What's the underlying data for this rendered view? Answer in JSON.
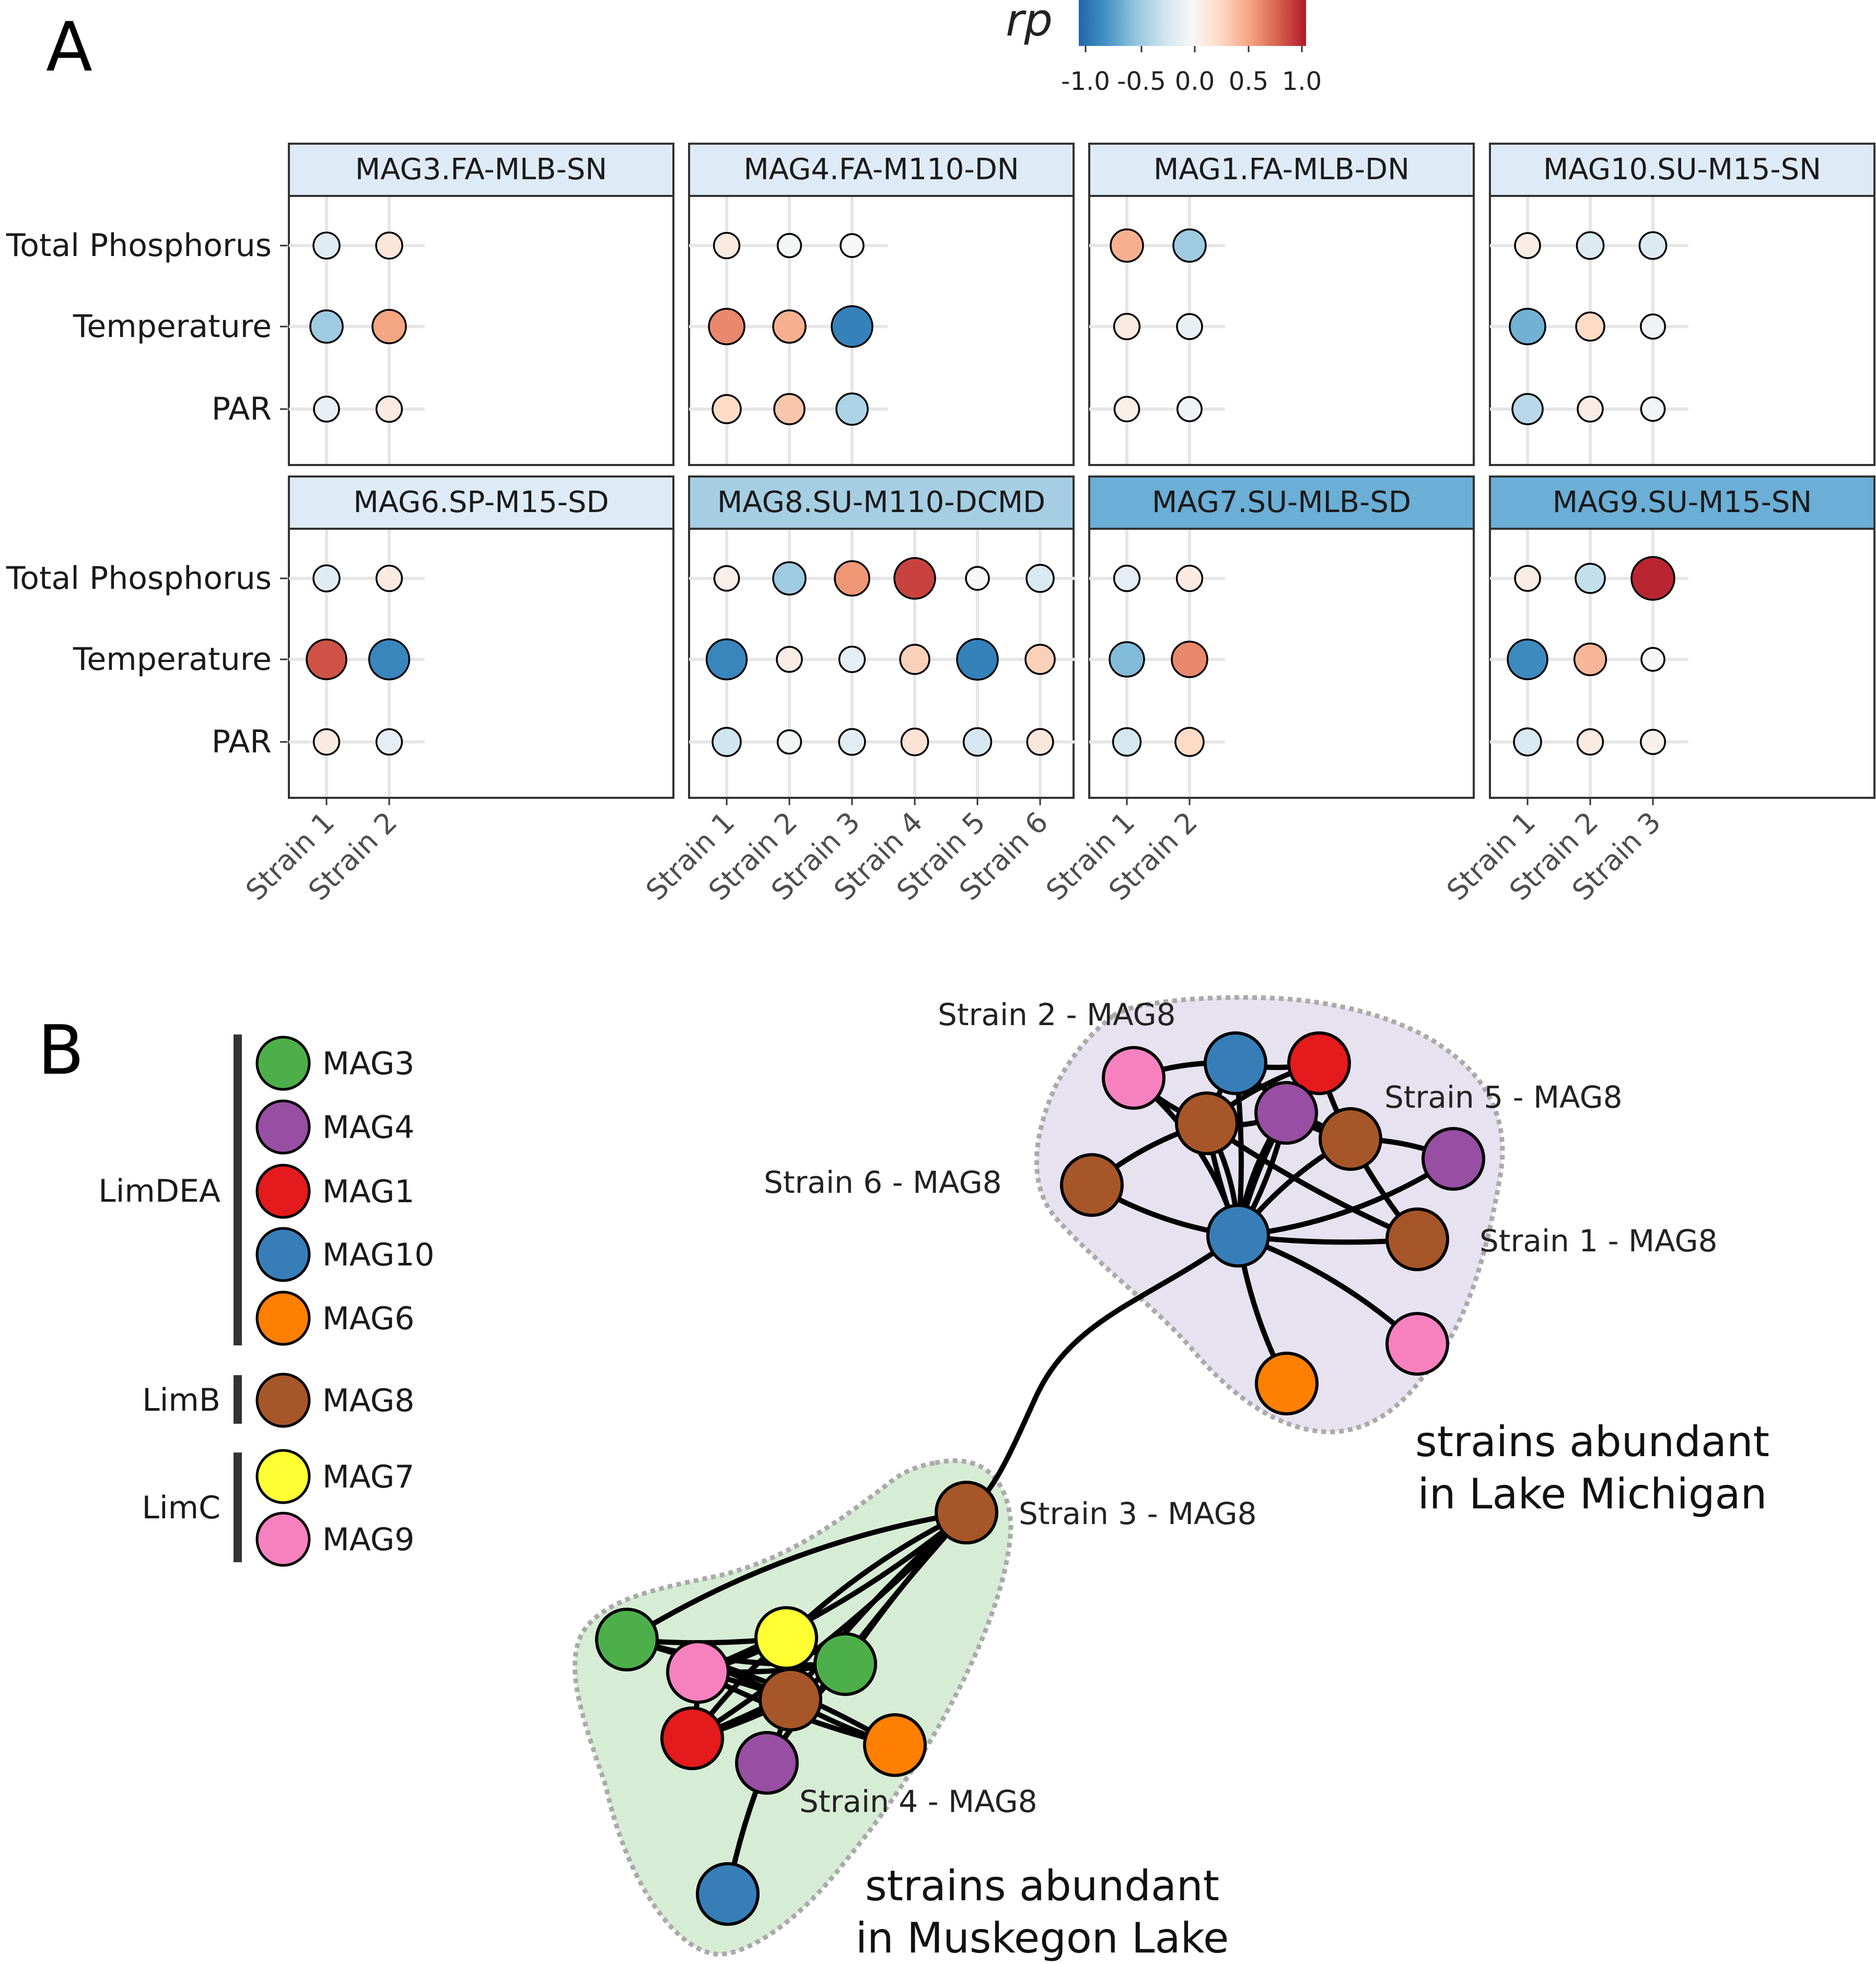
{
  "panel_a": {
    "letter": "A",
    "legend": {
      "title": "rp",
      "ticks": [
        "-1.0",
        "-0.5",
        "0.0",
        "0.5",
        "1.0"
      ],
      "colors": [
        "#2166ac",
        "#4393c3",
        "#92c5de",
        "#d1e5f0",
        "#f7f7f7",
        "#fddbc7",
        "#f4a582",
        "#d6604d",
        "#b2182b"
      ]
    },
    "rows": [
      "Total Phosphorus",
      "Temperature",
      "PAR"
    ]
  },
  "chart_data": [
    {
      "type": "scatter",
      "title": "MAG3.FA-MLB-SN",
      "header_color": "#deebf7",
      "x": [
        "Strain 1",
        "Strain 2"
      ],
      "y": [
        "Total Phosphorus",
        "Temperature",
        "PAR"
      ],
      "values": [
        [
          -0.15,
          0.15
        ],
        [
          -0.45,
          0.5
        ],
        [
          -0.1,
          0.12
        ]
      ]
    },
    {
      "type": "scatter",
      "title": "MAG4.FA-M110-DN",
      "header_color": "#deebf7",
      "x": [
        "Strain 1",
        "Strain 2",
        "Strain 3"
      ],
      "y": [
        "Total Phosphorus",
        "Temperature",
        "PAR"
      ],
      "values": [
        [
          0.12,
          -0.02,
          0.0
        ],
        [
          0.6,
          0.45,
          -0.85
        ],
        [
          0.25,
          0.35,
          -0.4
        ]
      ]
    },
    {
      "type": "scatter",
      "title": "MAG1.FA-MLB-DN",
      "header_color": "#deebf7",
      "x": [
        "Strain 1",
        "Strain 2"
      ],
      "y": [
        "Total Phosphorus",
        "Temperature",
        "PAR"
      ],
      "values": [
        [
          0.45,
          -0.45
        ],
        [
          0.12,
          -0.1
        ],
        [
          0.08,
          -0.06
        ]
      ]
    },
    {
      "type": "scatter",
      "title": "MAG10.SU-M15-SN",
      "header_color": "#deebf7",
      "x": [
        "Strain 1",
        "Strain 2",
        "Strain 3"
      ],
      "y": [
        "Total Phosphorus",
        "Temperature",
        "PAR"
      ],
      "values": [
        [
          0.1,
          -0.18,
          -0.18
        ],
        [
          -0.6,
          0.25,
          -0.06
        ],
        [
          -0.35,
          0.1,
          -0.03
        ]
      ]
    },
    {
      "type": "scatter",
      "title": "MAG6.SP-M15-SD",
      "header_color": "#deebf7",
      "x": [
        "Strain 1",
        "Strain 2"
      ],
      "y": [
        "Total Phosphorus",
        "Temperature",
        "PAR"
      ],
      "values": [
        [
          -0.15,
          0.12
        ],
        [
          0.8,
          -0.82
        ],
        [
          0.12,
          -0.12
        ]
      ]
    },
    {
      "type": "scatter",
      "title": "MAG8.SU-M110-DCMD",
      "header_color": "#a6cee3",
      "x": [
        "Strain 1",
        "Strain 2",
        "Strain 3",
        "Strain 4",
        "Strain 5",
        "Strain 6"
      ],
      "y": [
        "Total Phosphorus",
        "Temperature",
        "PAR"
      ],
      "values": [
        [
          0.08,
          -0.45,
          0.55,
          0.85,
          0.0,
          -0.2
        ],
        [
          -0.82,
          0.1,
          -0.12,
          0.3,
          -0.85,
          0.3
        ],
        [
          -0.25,
          -0.02,
          -0.14,
          0.18,
          -0.22,
          0.14
        ]
      ]
    },
    {
      "type": "scatter",
      "title": "MAG7.SU-MLB-SD",
      "header_color": "#6baed6",
      "x": [
        "Strain 1",
        "Strain 2"
      ],
      "y": [
        "Total Phosphorus",
        "Temperature",
        "PAR"
      ],
      "values": [
        [
          -0.12,
          0.12
        ],
        [
          -0.55,
          0.6
        ],
        [
          -0.22,
          0.25
        ]
      ]
    },
    {
      "type": "scatter",
      "title": "MAG9.SU-M15-SN",
      "header_color": "#6baed6",
      "x": [
        "Strain 1",
        "Strain 2",
        "Strain 3"
      ],
      "y": [
        "Total Phosphorus",
        "Temperature",
        "PAR"
      ],
      "values": [
        [
          0.1,
          -0.3,
          0.95
        ],
        [
          -0.8,
          0.42,
          0.0
        ],
        [
          -0.2,
          0.12,
          0.06
        ]
      ]
    }
  ],
  "panel_b": {
    "letter": "B",
    "legend_groups": [
      {
        "name": "LimDEA",
        "items": [
          {
            "label": "MAG3",
            "color": "#4daf4a"
          },
          {
            "label": "MAG4",
            "color": "#984ea3"
          },
          {
            "label": "MAG1",
            "color": "#e41a1c"
          },
          {
            "label": "MAG10",
            "color": "#377eb8"
          },
          {
            "label": "MAG6",
            "color": "#ff7f00"
          }
        ]
      },
      {
        "name": "LimB",
        "items": [
          {
            "label": "MAG8",
            "color": "#a65628"
          }
        ]
      },
      {
        "name": "LimC",
        "items": [
          {
            "label": "MAG7",
            "color": "#ffff33"
          },
          {
            "label": "MAG9",
            "color": "#f781bf"
          }
        ]
      }
    ],
    "node_labels": {
      "strain2": "Strain 2 - MAG8",
      "strain5": "Strain 5 - MAG8",
      "strain6": "Strain 6 - MAG8",
      "strain1": "Strain 1 - MAG8",
      "strain3": "Strain 3 - MAG8",
      "strain4": "Strain 4 - MAG8"
    },
    "cluster_labels": {
      "michigan_line1": "strains abundant",
      "michigan_line2": "in Lake Michigan",
      "muskegon_line1": "strains abundant",
      "muskegon_line2": "in Muskegon Lake"
    },
    "cluster_colors": {
      "michigan": "#e6e2f0",
      "muskegon": "#d7ecd5"
    }
  }
}
